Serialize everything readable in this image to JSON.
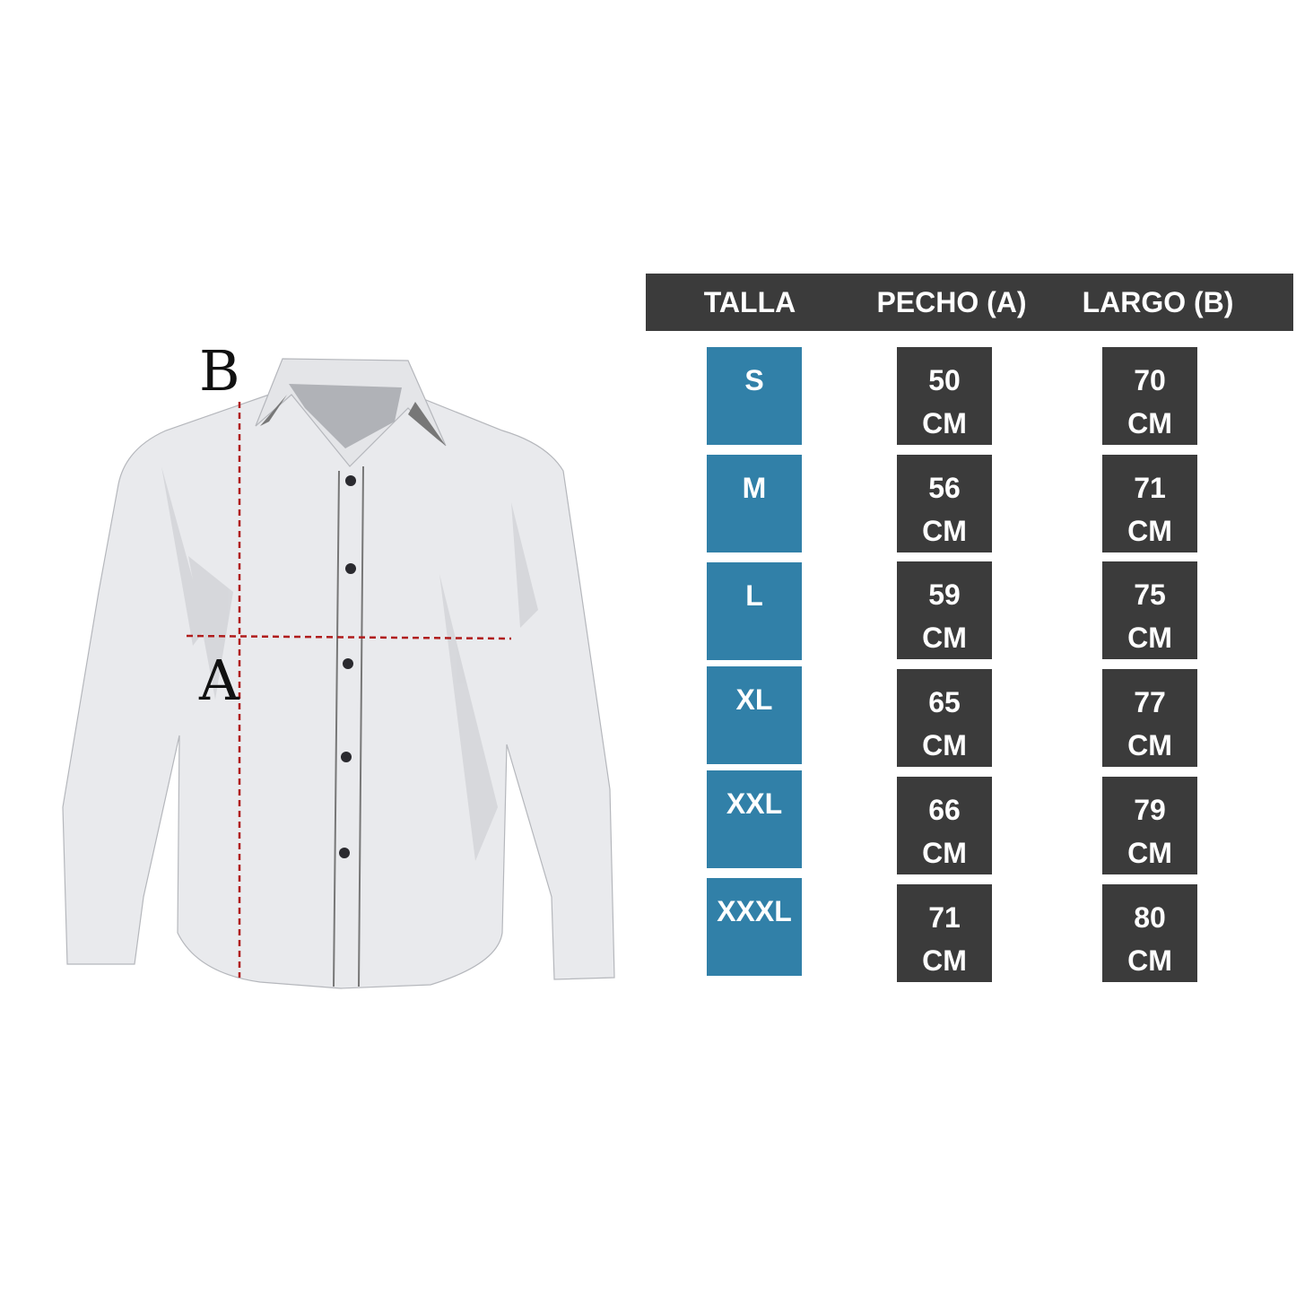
{
  "labels": {
    "b": "B",
    "a": "A"
  },
  "table": {
    "headers": [
      "TALLA",
      "PECHO (A)",
      "LARGO (B)"
    ],
    "unit": "CM",
    "rows": [
      {
        "talla": "S",
        "pecho": "50",
        "largo": "70"
      },
      {
        "talla": "M",
        "pecho": "56",
        "largo": "71"
      },
      {
        "talla": "L",
        "pecho": "59",
        "largo": "75"
      },
      {
        "talla": "XL",
        "pecho": "65",
        "largo": "77"
      },
      {
        "talla": "XXL",
        "pecho": "66",
        "largo": "79"
      },
      {
        "talla": "XXXL",
        "pecho": "71",
        "largo": "80"
      }
    ]
  },
  "colors": {
    "header": "#3b3b3b",
    "talla": "#3180a8",
    "measure": "#3b3b3b",
    "guide": "#b01c1c",
    "shirt": "#e9eaed"
  }
}
